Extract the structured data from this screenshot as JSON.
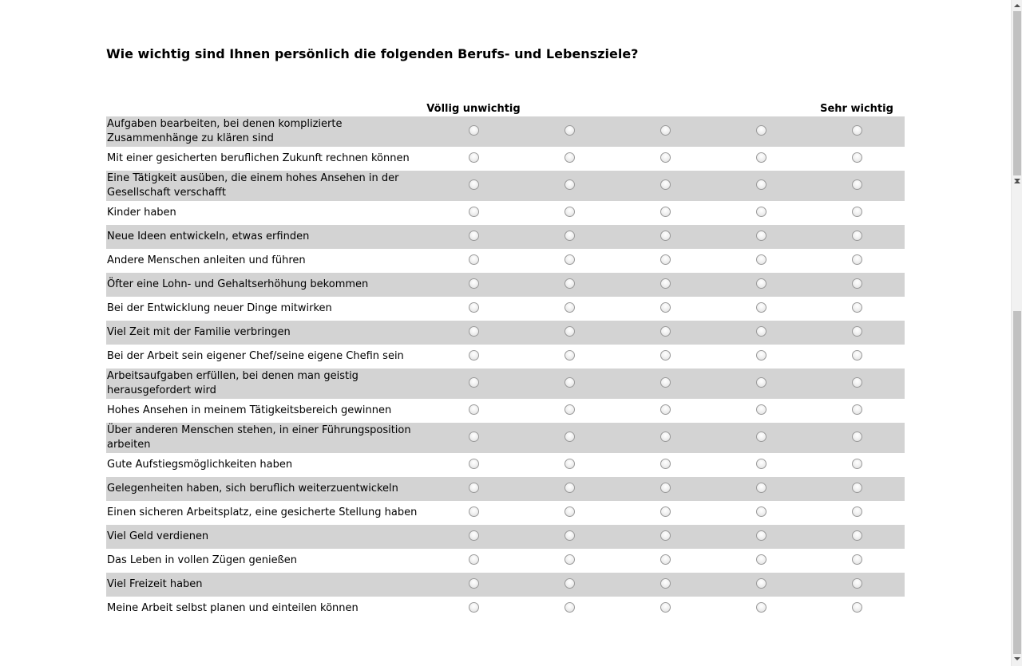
{
  "question": "Wie wichtig sind Ihnen persönlich die folgenden Berufs- und Lebensziele?",
  "scale": {
    "low_label": "Völlig unwichtig",
    "high_label": "Sehr wichtig",
    "points": 5
  },
  "items": [
    {
      "label": "Aufgaben bearbeiten, bei denen komplizierte Zusammenhänge zu klären sind",
      "lines": 2
    },
    {
      "label": "Mit einer gesicherten beruflichen Zukunft rechnen können",
      "lines": 1
    },
    {
      "label": "Eine Tätigkeit ausüben, die einem hohes Ansehen in der Gesellschaft verschafft",
      "lines": 2
    },
    {
      "label": "Kinder haben",
      "lines": 1
    },
    {
      "label": "Neue Ideen entwickeln, etwas erfinden",
      "lines": 1
    },
    {
      "label": "Andere Menschen anleiten und führen",
      "lines": 1
    },
    {
      "label": "Öfter eine Lohn- und Gehaltserhöhung bekommen",
      "lines": 1
    },
    {
      "label": "Bei der Entwicklung neuer Dinge mitwirken",
      "lines": 1
    },
    {
      "label": "Viel Zeit mit der Familie verbringen",
      "lines": 1
    },
    {
      "label": "Bei der Arbeit sein eigener Chef/seine eigene Chefin sein",
      "lines": 1
    },
    {
      "label": "Arbeitsaufgaben erfüllen, bei denen man geistig herausgefordert wird",
      "lines": 2
    },
    {
      "label": "Hohes Ansehen in meinem Tätigkeitsbereich gewinnen",
      "lines": 1
    },
    {
      "label": "Über anderen Menschen stehen, in einer Führungsposition arbeiten",
      "lines": 2
    },
    {
      "label": "Gute Aufstiegsmöglichkeiten haben",
      "lines": 1
    },
    {
      "label": "Gelegenheiten haben, sich beruflich weiterzuentwickeln",
      "lines": 1
    },
    {
      "label": "Einen sicheren Arbeitsplatz, eine gesicherte Stellung haben",
      "lines": 1
    },
    {
      "label": "Viel Geld verdienen",
      "lines": 1
    },
    {
      "label": "Das Leben in vollen Zügen genießen",
      "lines": 1
    },
    {
      "label": "Viel Freizeit haben",
      "lines": 1
    },
    {
      "label": "Meine Arbeit selbst planen und einteilen können",
      "lines": 1
    }
  ]
}
